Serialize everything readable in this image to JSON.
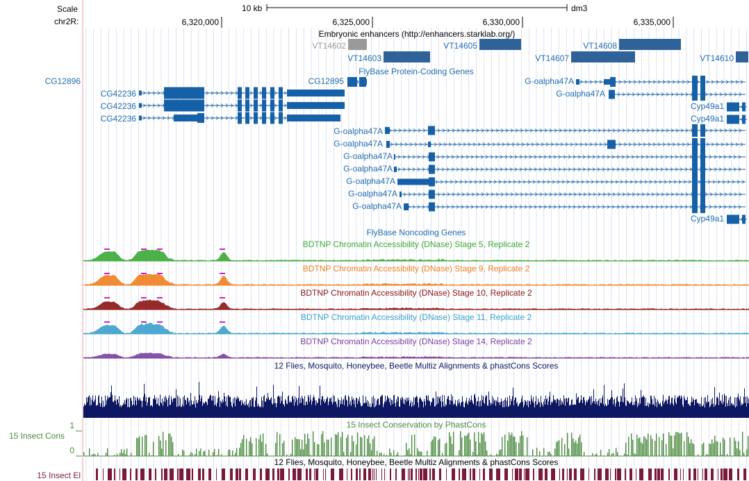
{
  "colors": {
    "blue": "#1f6cb0",
    "gene": "#1660a8",
    "enh": "#2f6298",
    "gray": "#9a9a9a",
    "grid": "#c8cfe8",
    "green": "#3aa935",
    "orange": "#f07f1e",
    "maroon": "#8c1414",
    "cyan": "#3aa0cc",
    "purple": "#7a3fa0",
    "navy": "#0d1762",
    "cons": "#4a8a3e",
    "el": "#7a1a3a",
    "magenta": "#d020c8",
    "sidebar": "#e9a3a3"
  },
  "ruler": {
    "scale_label": "Scale",
    "scale_bar": "10 kb",
    "assembly": "dm3",
    "chrom_label": "chr2R:",
    "ticks": [
      "6,320,000",
      "6,325,000",
      "6,330,000",
      "6,335,000"
    ]
  },
  "tracks": {
    "enhancers_title": "Embryonic enhancers (http://enhancers.starklab.org/)",
    "enhancers": [
      "VT14602",
      "VT14603",
      "VT14605",
      "VT14607",
      "VT14608",
      "VT14610"
    ],
    "protein_title": "FlyBase Protein-Coding Genes",
    "genes": {
      "cg12896": "CG12896",
      "cg42236": "CG42236",
      "cg12895": "CG12895",
      "galpha": "G-oalpha47A",
      "cyp": "Cyp49a1"
    },
    "noncoding_title": "FlyBase Noncoding Genes",
    "dnase": [
      "BDTNP Chromatin Accessibility (DNase) Stage 5, Replicate 2",
      "BDTNP Chromatin Accessibility (DNase) Stage 9, Replicate 2",
      "BDTNP Chromatin Accessibility (DNase) Stage 10, Replicate 2",
      "BDTNP Chromatin Accessibility (DNase) Stage 11, Replicate 2",
      "BDTNP Chromatin Accessibility (DNase) Stage 14, Replicate 2"
    ],
    "multiz_title": "12 Flies, Mosquito, Honeybee, Beetle Multiz Alignments & phastCons Scores",
    "cons_title": "15 Insect Conservation by PhastCons",
    "cons_label": "15 Insect Cons",
    "cons_max": "1",
    "cons_min": "0",
    "el_title": "12 Flies, Mosquito, Honeybee, Beetle Multiz Alignments & phastCons Scores",
    "el_label": "15 Insect El"
  }
}
